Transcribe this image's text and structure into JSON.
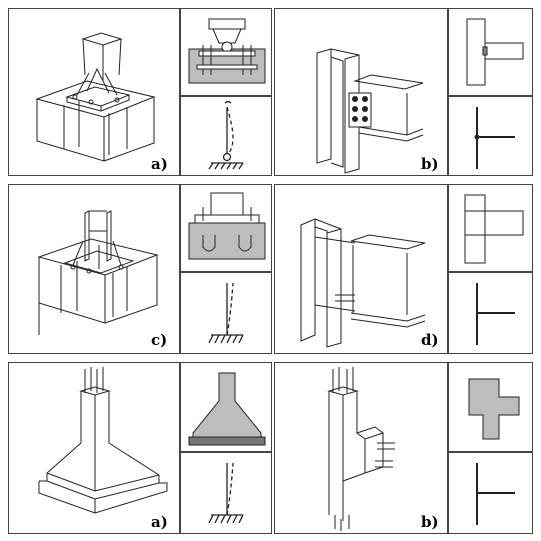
{
  "rows": [
    {
      "left_label": "a)",
      "right_label": "b)"
    },
    {
      "left_label": "c)",
      "right_label": "d)"
    },
    {
      "left_label": "a)",
      "right_label": "b)"
    }
  ],
  "colors": {
    "line": "#222222",
    "fill_gray": "#bdbdbd",
    "panel_border": "#444444"
  },
  "icons": [
    "steel-column-base",
    "steel-beam-column-joint",
    "concrete-footing",
    "concrete-beam-column-joint",
    "pinned-support",
    "fixed-support",
    "rigid-joint"
  ]
}
